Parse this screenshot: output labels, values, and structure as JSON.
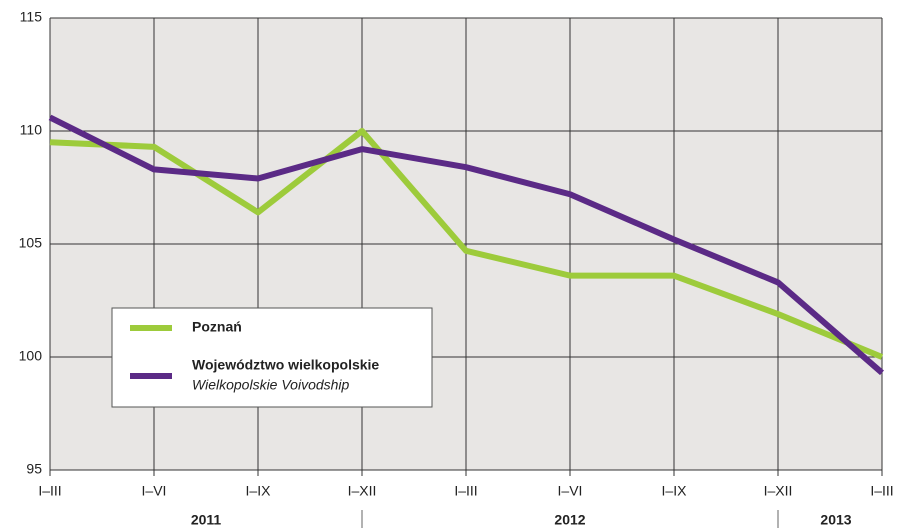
{
  "chart_data": {
    "type": "line",
    "categories": [
      "I–III",
      "I–VI",
      "I–IX",
      "I–XII",
      "I–III",
      "I–VI",
      "I–IX",
      "I–XII",
      "I–III"
    ],
    "x_groups": [
      "2011",
      "2012",
      "2013"
    ],
    "series": [
      {
        "name": "Poznań",
        "color": "#9dcb3b",
        "values": [
          109.5,
          109.3,
          106.4,
          110.0,
          104.7,
          103.6,
          103.6,
          101.9,
          100.0
        ]
      },
      {
        "name": "Województwo wielkopolskie",
        "name_en": "Wielkopolskie Voivodship",
        "color": "#5b2a86",
        "values": [
          110.6,
          108.3,
          107.9,
          109.2,
          108.4,
          107.2,
          105.2,
          103.3,
          99.3
        ]
      }
    ],
    "ylim": [
      95,
      115
    ],
    "yticks": [
      95,
      100,
      105,
      110,
      115
    ],
    "grid": true
  }
}
